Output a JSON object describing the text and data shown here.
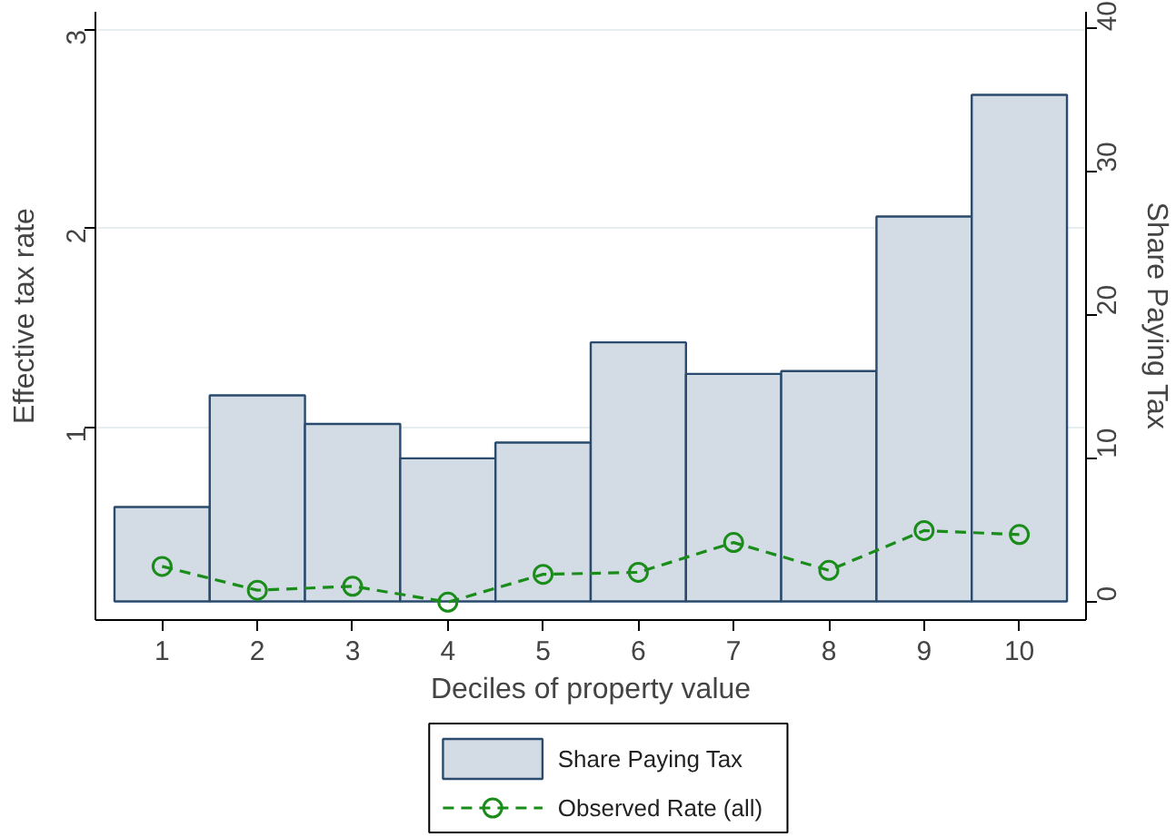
{
  "chart_data": {
    "type": "bar",
    "xlabel": "Deciles of property value",
    "ylabel": "Effective tax rate",
    "y2label": "Share Paying Tax",
    "x": [
      1,
      2,
      3,
      4,
      5,
      6,
      7,
      8,
      9,
      10
    ],
    "xlim": [
      0.3,
      10.7
    ],
    "xticks": [
      1,
      2,
      3,
      4,
      5,
      6,
      7,
      8,
      9,
      10
    ],
    "ylim": [
      0.03,
      3.09
    ],
    "yticks": [
      1,
      2,
      3
    ],
    "y2lim": [
      -1.3,
      41.2
    ],
    "y2ticks": [
      0,
      10,
      20,
      30,
      40
    ],
    "grid": "y",
    "legend": "bottom",
    "series": [
      {
        "name": "Share Paying Tax",
        "type": "bar",
        "axis": "y2",
        "color": "#d3dbe5",
        "values": [
          6.6,
          14.4,
          12.4,
          10.0,
          11.1,
          18.1,
          15.9,
          16.1,
          26.9,
          35.4
        ]
      },
      {
        "name": "Observed Rate (all)",
        "type": "line",
        "axis": "y",
        "color": "#1a8c1a",
        "marker": "circle",
        "line_style": "dashed",
        "values": [
          0.3,
          0.18,
          0.2,
          0.12,
          0.26,
          0.27,
          0.42,
          0.28,
          0.48,
          0.46
        ]
      }
    ]
  }
}
